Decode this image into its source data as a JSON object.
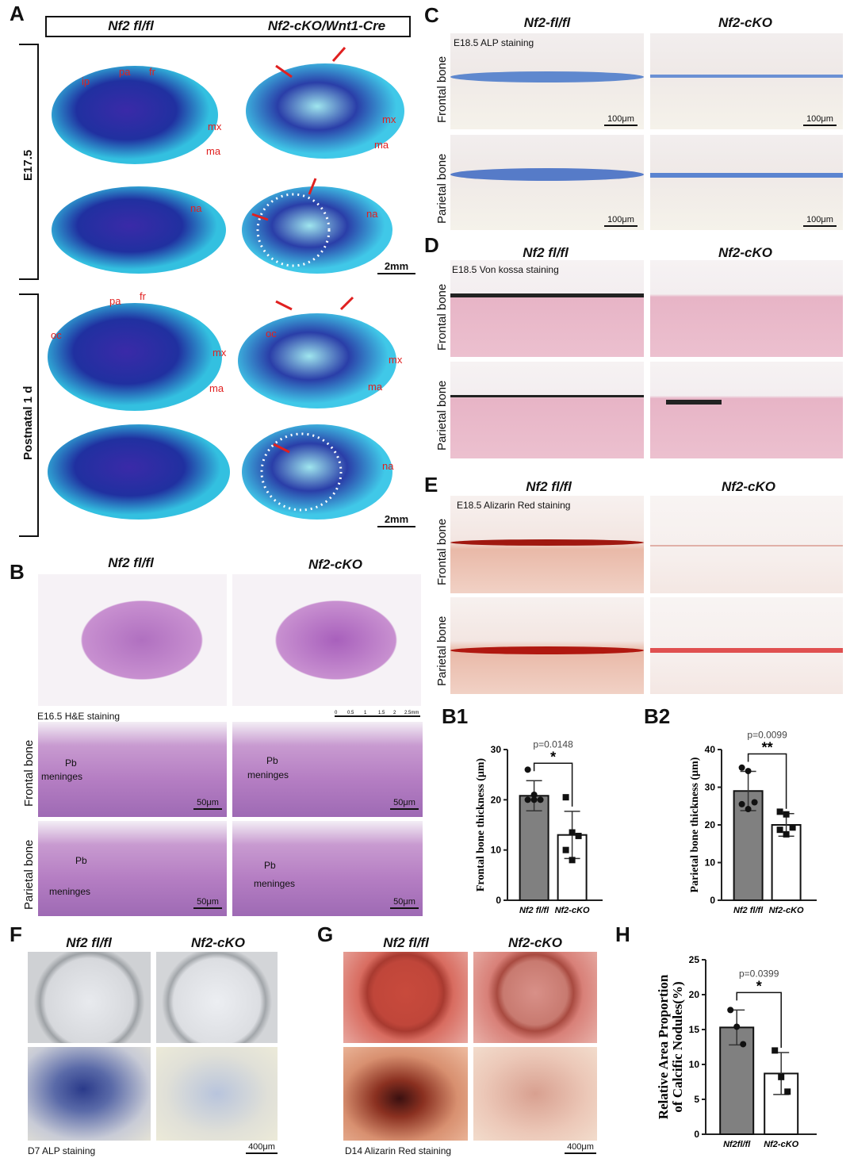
{
  "panels": {
    "A": {
      "label": "A",
      "header_left": "Nf2 fl/fl",
      "header_right": "Nf2-cKO/Wnt1-Cre",
      "row1": "E17.5",
      "row2": "Postnatal 1 d",
      "scale": "2mm",
      "skull_labels": [
        "ip",
        "pa",
        "fr",
        "mx",
        "ma",
        "na",
        "oc"
      ]
    },
    "B": {
      "label": "B",
      "header_left": "Nf2 fl/fl",
      "header_right": "Nf2-cKO",
      "caption": "E16.5 H&E staining",
      "ruler": [
        "0",
        "0.5",
        "1",
        "1.5",
        "2",
        "2.5mm"
      ],
      "row1": "Frontal bone",
      "row2": "Parietal bone",
      "pb": "Pb",
      "meninges": "meninges",
      "scale": "50μm"
    },
    "C": {
      "label": "C",
      "header_left": "Nf2-fl/fl",
      "header_right": "Nf2-cKO",
      "caption": "E18.5   ALP staining",
      "row1": "Frontal bone",
      "row2": "Parietal bone",
      "scale": "100μm"
    },
    "D": {
      "label": "D",
      "header_left": "Nf2 fl/fl",
      "header_right": "Nf2-cKO",
      "caption": "E18.5   Von kossa staining",
      "row1": "Frontal bone",
      "row2": "Parietal bone"
    },
    "E": {
      "label": "E",
      "header_left": "Nf2 fl/fl",
      "header_right": "Nf2-cKO",
      "caption": "E18.5   Alizarin Red staining",
      "row1": "Frontal bone",
      "row2": "Parietal bone"
    },
    "F": {
      "label": "F",
      "header_left": "Nf2 fl/fl",
      "header_right": "Nf2-cKO",
      "caption": "D7   ALP staining",
      "scale": "400μm"
    },
    "G": {
      "label": "G",
      "header_left": "Nf2 fl/fl",
      "header_right": "Nf2-cKO",
      "caption": "D14   Alizarin Red staining",
      "scale": "400μm"
    },
    "B1": {
      "label": "B1"
    },
    "B2": {
      "label": "B2"
    },
    "H": {
      "label": "H"
    }
  },
  "chart_data": [
    {
      "id": "B1",
      "type": "bar",
      "ylabel": "Frontal bone thickness (μm)",
      "ylim": [
        0,
        30
      ],
      "yticks": [
        0,
        10,
        20,
        30
      ],
      "categories": [
        "Nf2 fl/fl",
        "Nf2-cKO"
      ],
      "means": [
        20.8,
        13.0
      ],
      "sd": [
        3.0,
        4.7
      ],
      "fill": [
        "#808080",
        "#ffffff"
      ],
      "points": [
        [
          26,
          21,
          20,
          20,
          20
        ],
        [
          20.5,
          13.5,
          12.8,
          10,
          8
        ]
      ],
      "markers": [
        "circle",
        "square"
      ],
      "p_text": "p=0.0148",
      "stars": "*"
    },
    {
      "id": "B2",
      "type": "bar",
      "ylabel": "Parietal bone thickness (μm)",
      "ylim": [
        0,
        40
      ],
      "yticks": [
        0,
        10,
        20,
        30,
        40
      ],
      "categories": [
        "Nf2 fl/fl",
        "Nf2-cKO"
      ],
      "means": [
        29.0,
        20.0
      ],
      "sd": [
        5.2,
        3.0
      ],
      "fill": [
        "#808080",
        "#ffffff"
      ],
      "points": [
        [
          35.2,
          34.3,
          26,
          25.5,
          24.2
        ],
        [
          23.5,
          22.8,
          19.3,
          18.7,
          17.5
        ]
      ],
      "markers": [
        "circle",
        "square"
      ],
      "p_text": "p=0.0099",
      "stars": "**"
    },
    {
      "id": "H",
      "type": "bar",
      "ylabel": "Relative Area Proportion|of Calcific Nodules(%)",
      "ylim": [
        0,
        25
      ],
      "yticks": [
        0,
        5,
        10,
        15,
        20,
        25
      ],
      "categories": [
        "Nf2fl/fl",
        "Nf2-cKO"
      ],
      "means": [
        15.3,
        8.7
      ],
      "sd": [
        2.5,
        3.0
      ],
      "fill": [
        "#808080",
        "#ffffff"
      ],
      "points": [
        [
          17.8,
          15.4,
          12.9
        ],
        [
          12,
          8.2,
          6.1
        ]
      ],
      "markers": [
        "circle",
        "square"
      ],
      "p_text": "p=0.0399",
      "stars": "*"
    }
  ]
}
